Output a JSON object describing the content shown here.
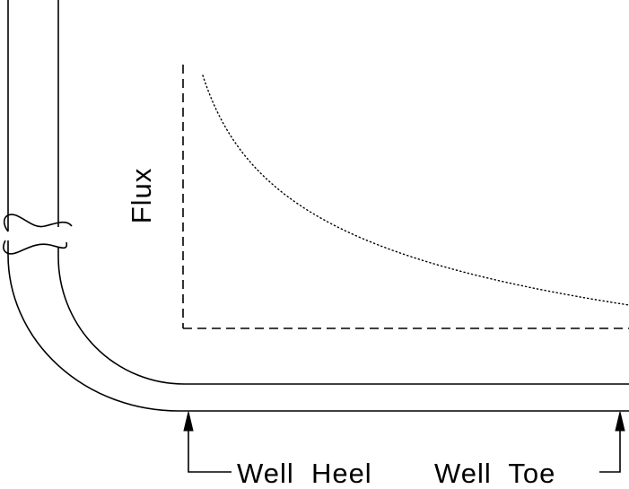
{
  "diagram": {
    "axis_label": "Flux",
    "heel_label": "Well  Heel",
    "toe_label": "Well  Toe"
  }
}
